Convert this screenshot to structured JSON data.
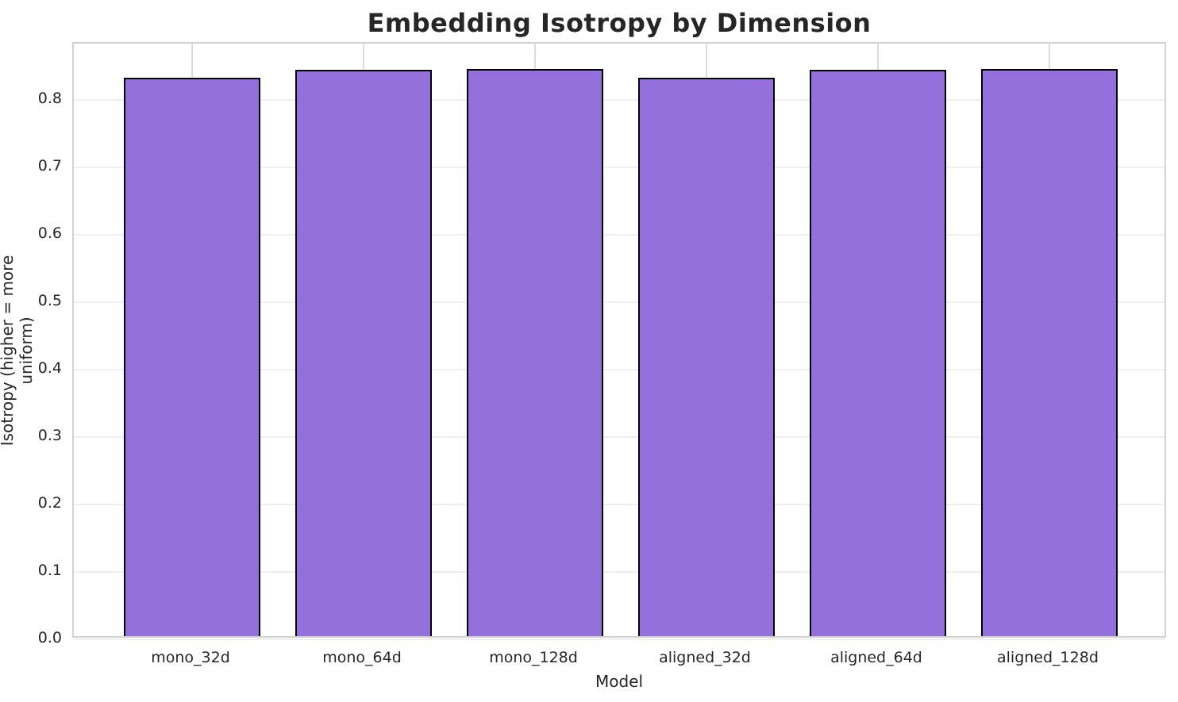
{
  "chart_data": {
    "type": "bar",
    "title": "Embedding Isotropy by Dimension",
    "xlabel": "Model",
    "ylabel": "Isotropy (higher = more uniform)",
    "categories": [
      "mono_32d",
      "mono_64d",
      "mono_128d",
      "aligned_32d",
      "aligned_64d",
      "aligned_128d"
    ],
    "values": [
      0.829,
      0.841,
      0.842,
      0.829,
      0.841,
      0.842
    ],
    "ylim": [
      0,
      0.884
    ],
    "xlim": [
      -0.69,
      5.69
    ],
    "yticks": [
      0.0,
      0.1,
      0.2,
      0.3,
      0.4,
      0.5,
      0.6,
      0.7,
      0.8
    ],
    "ytick_labels": [
      "0.0",
      "0.1",
      "0.2",
      "0.3",
      "0.4",
      "0.5",
      "0.6",
      "0.7",
      "0.8"
    ],
    "bar_width_units": 0.8,
    "grid": "both",
    "legend": "none",
    "colors": {
      "bar_fill": "#9370DB",
      "bar_edge": "#000000",
      "grid_h": "#f0f0f0",
      "grid_v": "#dcdcdc",
      "spine": "#d2d2d2",
      "text": "#262626",
      "background": "#ffffff"
    }
  }
}
